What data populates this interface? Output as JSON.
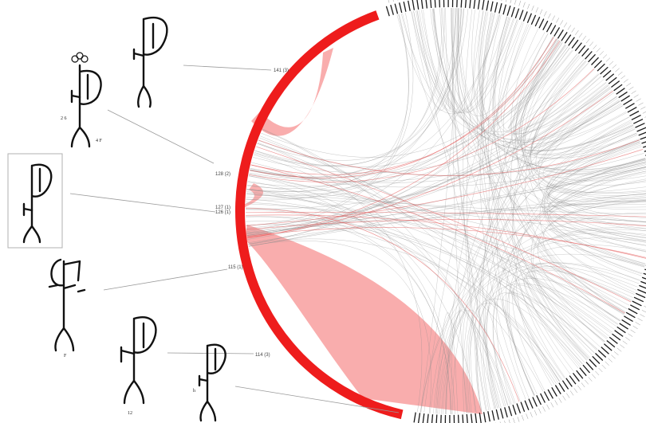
{
  "diagram": {
    "type": "chord",
    "colors": {
      "highlight": "#ee1c1c",
      "highlight_fill": "#f9a9a9",
      "ring_dark": "#1a1a1a",
      "chords_gray": "#8c8c8c",
      "chords_red": "#e25555",
      "leader": "#9a9a9a",
      "box_border": "#b0b0b0"
    },
    "labels": [
      {
        "id": "l141",
        "text": "141 (3)"
      },
      {
        "id": "l128",
        "text": "128 (2)"
      },
      {
        "id": "l127",
        "text": "127 (1)"
      },
      {
        "id": "l126",
        "text": "126 (1)"
      },
      {
        "id": "l115",
        "text": "115 (1)"
      },
      {
        "id": "l114",
        "text": "114 (3)"
      }
    ],
    "glyph_notes": [
      {
        "id": "g2a",
        "text": "2 6"
      },
      {
        "id": "g2b",
        "text": "4 F"
      },
      {
        "id": "g4a",
        "text": "F"
      },
      {
        "id": "g5a",
        "text": "12"
      },
      {
        "id": "g6a",
        "text": "h"
      }
    ],
    "boxed_glyph_index": 3
  }
}
